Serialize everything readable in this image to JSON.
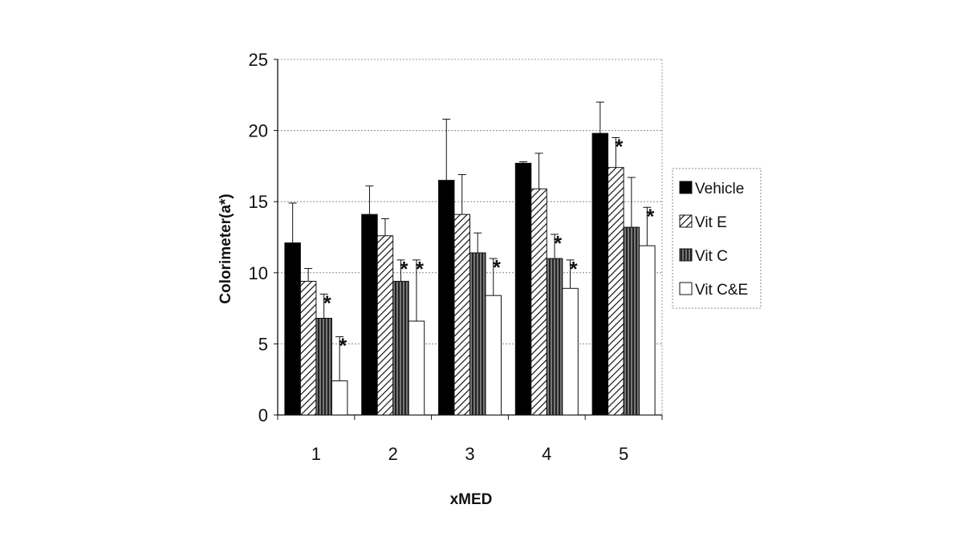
{
  "chart_data": {
    "type": "bar",
    "title": "",
    "xlabel": "xMED",
    "ylabel": "Colorimeter(a*)",
    "categories": [
      "1",
      "2",
      "3",
      "4",
      "5"
    ],
    "ylim": [
      0,
      25
    ],
    "yticks": [
      "0",
      "5",
      "10",
      "15",
      "20",
      "25"
    ],
    "grid": true,
    "legend_position": "right",
    "series": [
      {
        "name": "Vehicle",
        "values": [
          12.1,
          14.1,
          16.5,
          17.7,
          19.8
        ],
        "errors": [
          2.8,
          2.0,
          4.3,
          0.1,
          2.2
        ],
        "significant": [
          false,
          false,
          false,
          false,
          false
        ],
        "color": "#000000",
        "pattern": "solid"
      },
      {
        "name": "Vit E",
        "values": [
          9.4,
          12.6,
          14.1,
          15.9,
          17.4
        ],
        "errors": [
          0.9,
          1.2,
          2.8,
          2.5,
          2.1
        ],
        "significant": [
          false,
          false,
          false,
          false,
          true
        ],
        "color": "#ffffff",
        "pattern": "diagonal-hatch"
      },
      {
        "name": "Vit C",
        "values": [
          6.8,
          9.4,
          11.4,
          11.0,
          13.2
        ],
        "errors": [
          1.7,
          1.5,
          1.4,
          1.7,
          3.5
        ],
        "significant": [
          true,
          true,
          false,
          true,
          false
        ],
        "color": "#555555",
        "pattern": "vertical-stripes"
      },
      {
        "name": "Vit C&E",
        "values": [
          2.4,
          6.6,
          8.4,
          8.9,
          11.9
        ],
        "errors": [
          3.1,
          4.3,
          2.6,
          2.0,
          2.7
        ],
        "significant": [
          true,
          true,
          true,
          true,
          true
        ],
        "color": "#ffffff",
        "pattern": "none"
      }
    ],
    "significance_marker": "*"
  }
}
